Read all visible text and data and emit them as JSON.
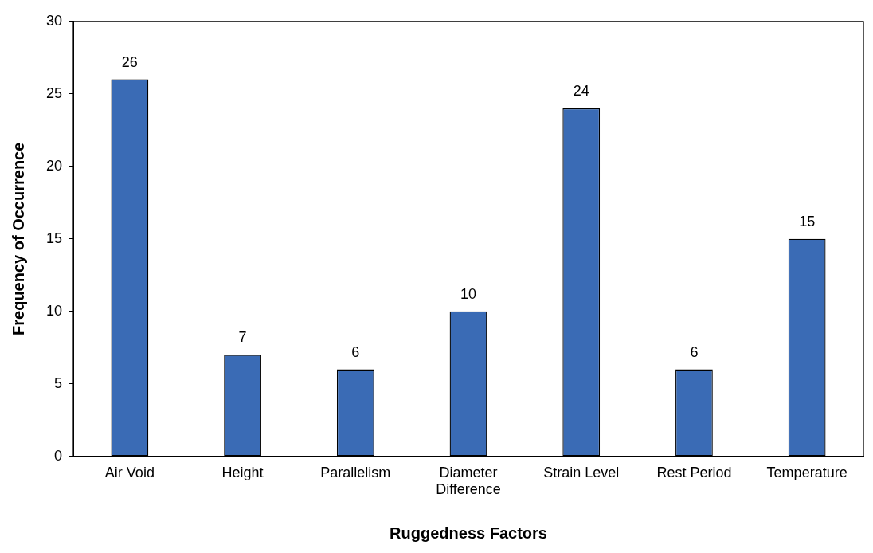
{
  "chart_data": {
    "type": "bar",
    "xlabel": "Ruggedness Factors",
    "ylabel": "Frequency of Occurrence",
    "categories": [
      "Air Void",
      "Height",
      "Parallelism",
      "Diameter Difference",
      "Strain Level",
      "Rest Period",
      "Temperature"
    ],
    "values": [
      26,
      7,
      6,
      10,
      24,
      6,
      15
    ],
    "color": "#3a6bb5",
    "ylim": [
      0,
      30
    ],
    "yticks": [
      0,
      5,
      10,
      15,
      20,
      25,
      30
    ],
    "grid": false,
    "legend": false,
    "data_labels": true
  }
}
